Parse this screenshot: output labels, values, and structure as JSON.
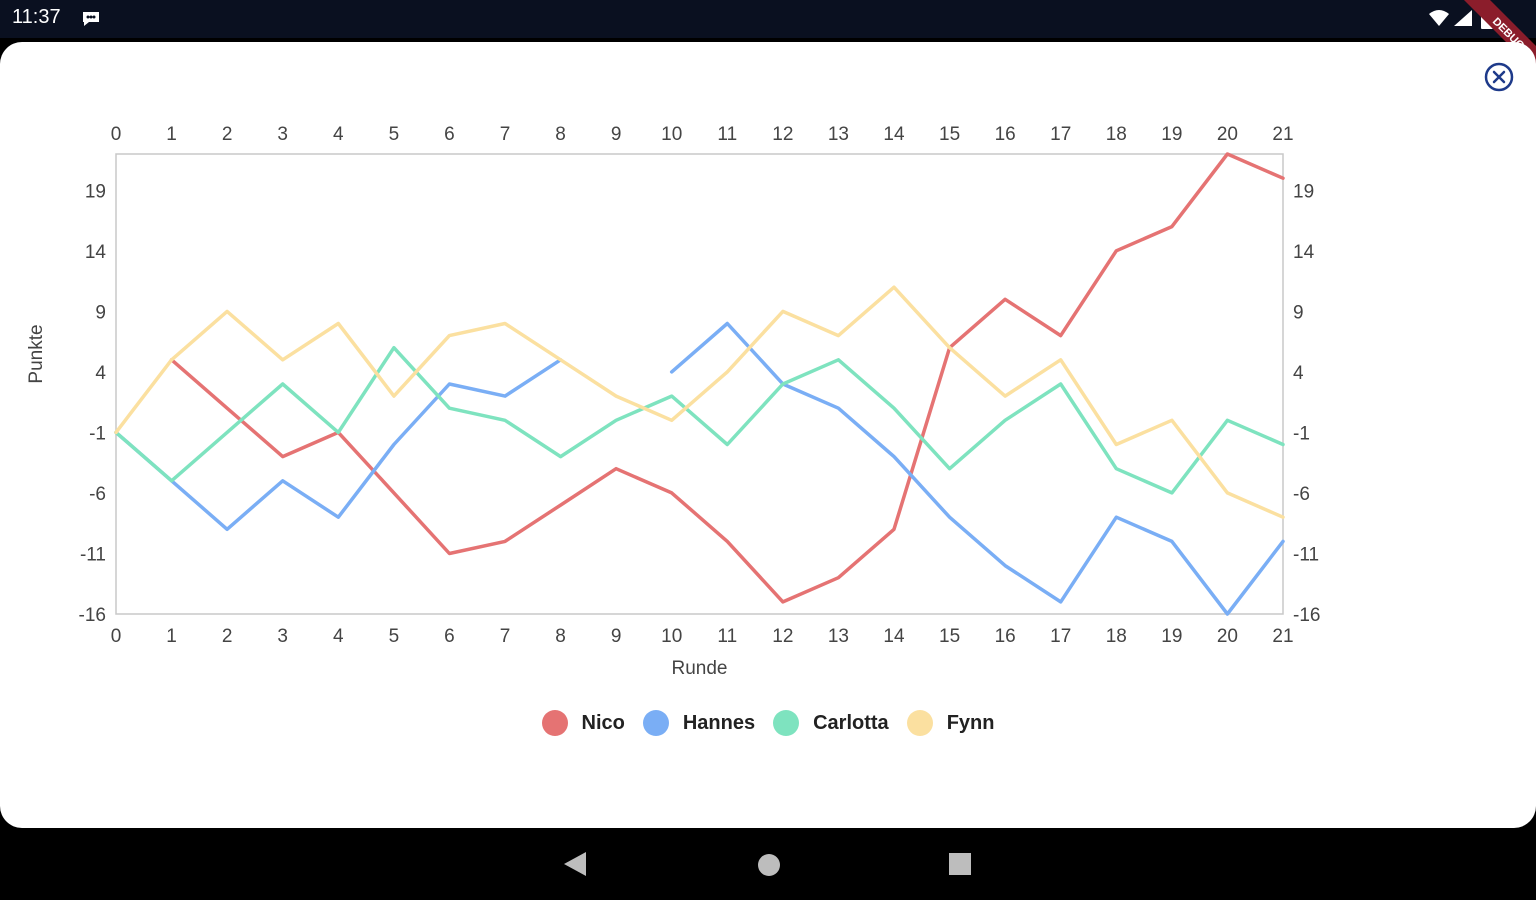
{
  "status_bar": {
    "time": "11:37",
    "icons": [
      "message-icon",
      "wifi-icon",
      "signal-icon",
      "battery-icon"
    ],
    "debug_banner": "DEBUG"
  },
  "dialog": {
    "close_icon": "close-circle-icon"
  },
  "chart_data": {
    "type": "line",
    "xlabel": "Runde",
    "ylabel": "Punkte",
    "x": [
      0,
      1,
      2,
      3,
      4,
      5,
      6,
      7,
      8,
      9,
      10,
      11,
      12,
      13,
      14,
      15,
      16,
      17,
      18,
      19,
      20,
      21
    ],
    "xlim": [
      0,
      21
    ],
    "ylim": [
      -16,
      22
    ],
    "yticks": [
      -16,
      -11,
      -6,
      -1,
      4,
      9,
      14,
      19
    ],
    "xticks_top": true,
    "yticks_right": true,
    "grid": false,
    "legend_position": "bottom",
    "series": [
      {
        "name": "Nico",
        "color": "#e57373",
        "values": [
          null,
          5,
          1,
          -3,
          -1,
          -6,
          -11,
          -10,
          -7,
          -4,
          -6,
          -10,
          -15,
          -13,
          -9,
          6,
          10,
          7,
          14,
          16,
          22,
          20
        ]
      },
      {
        "name": "Hannes",
        "color": "#7aaef5",
        "values": [
          -1,
          -5,
          -9,
          -5,
          -8,
          -2,
          3,
          2,
          5,
          null,
          4,
          8,
          3,
          1,
          -3,
          -8,
          -12,
          -15,
          -8,
          -10,
          -16,
          -10
        ]
      },
      {
        "name": "Carlotta",
        "color": "#7ee3bf",
        "values": [
          -1,
          -5,
          -1,
          3,
          -1,
          6,
          1,
          0,
          -3,
          0,
          2,
          -2,
          3,
          5,
          1,
          -4,
          0,
          3,
          -4,
          -6,
          0,
          -2
        ]
      },
      {
        "name": "Fynn",
        "color": "#fbe0a0",
        "values": [
          -1,
          5,
          9,
          5,
          8,
          2,
          7,
          8,
          5,
          2,
          0,
          4,
          9,
          7,
          11,
          6,
          2,
          5,
          -2,
          0,
          -6,
          -8
        ]
      }
    ]
  },
  "nav_bar": {
    "icons": [
      "back-icon",
      "home-icon",
      "recent-apps-icon"
    ]
  }
}
